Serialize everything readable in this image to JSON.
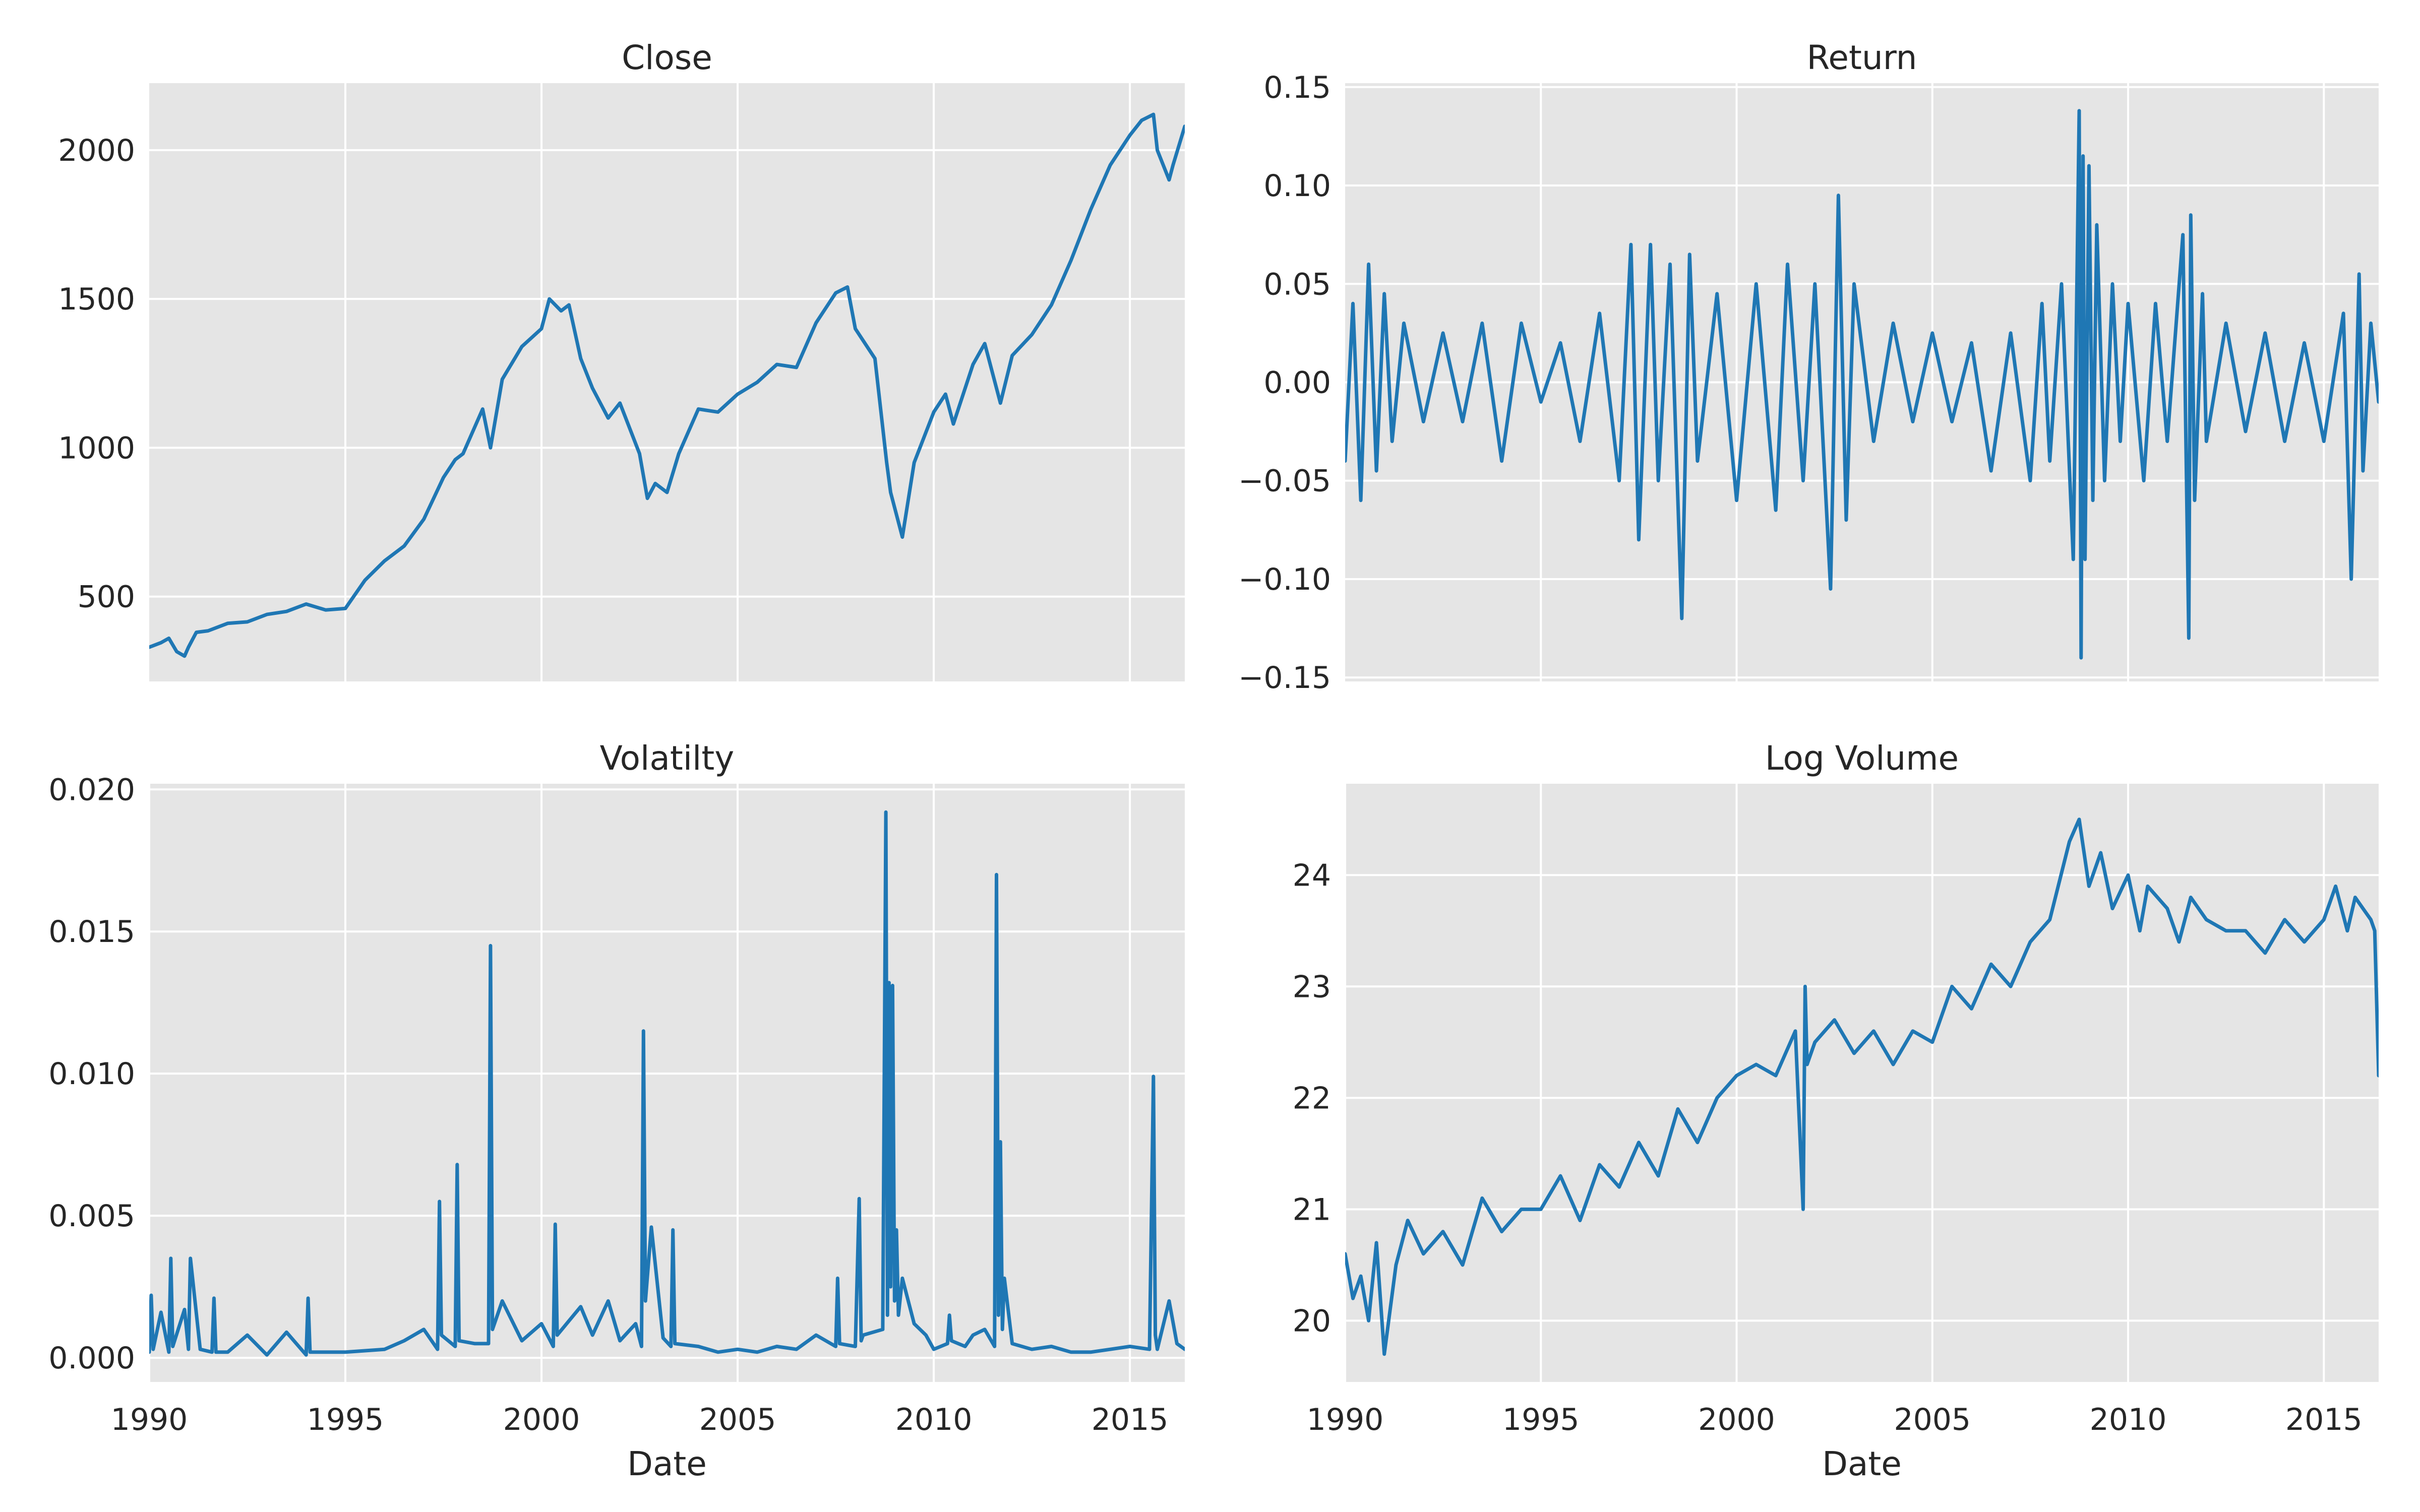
{
  "figure": {
    "line_color": "#1f77b4",
    "background_color": "#e5e5e5",
    "grid": true
  },
  "chart_data": [
    {
      "type": "line",
      "title": "Close",
      "xlabel": "",
      "ylabel": "",
      "xlim": [
        1990,
        2016.4
      ],
      "ylim": [
        215,
        2225
      ],
      "xticks": [
        1995,
        2000,
        2005,
        2010,
        2015
      ],
      "xtick_labels": [
        "",
        "",
        "",
        "",
        ""
      ],
      "yticks": [
        500,
        1000,
        1500,
        2000
      ],
      "ytick_labels": [
        "500",
        "1000",
        "1500",
        "2000"
      ],
      "series": [
        {
          "x": [
            1990.0,
            1990.3,
            1990.5,
            1990.7,
            1990.9,
            1991.0,
            1991.2,
            1991.5,
            1992.0,
            1992.5,
            1993.0,
            1993.5,
            1994.0,
            1994.5,
            1995.0,
            1995.5,
            1996.0,
            1996.5,
            1997.0,
            1997.5,
            1997.8,
            1998.0,
            1998.5,
            1998.7,
            1999.0,
            1999.5,
            2000.0,
            2000.2,
            2000.5,
            2000.7,
            2001.0,
            2001.3,
            2001.7,
            2002.0,
            2002.5,
            2002.7,
            2002.9,
            2003.2,
            2003.5,
            2004.0,
            2004.5,
            2005.0,
            2005.5,
            2006.0,
            2006.5,
            2007.0,
            2007.5,
            2007.8,
            2008.0,
            2008.5,
            2008.8,
            2008.9,
            2009.2,
            2009.5,
            2010.0,
            2010.3,
            2010.5,
            2011.0,
            2011.3,
            2011.7,
            2012.0,
            2012.5,
            2013.0,
            2013.5,
            2014.0,
            2014.5,
            2015.0,
            2015.3,
            2015.6,
            2015.7,
            2016.0,
            2016.1,
            2016.4
          ],
          "values": [
            330,
            345,
            360,
            315,
            300,
            330,
            380,
            385,
            410,
            415,
            440,
            450,
            475,
            455,
            460,
            555,
            620,
            670,
            760,
            900,
            960,
            980,
            1130,
            1000,
            1230,
            1340,
            1400,
            1500,
            1460,
            1480,
            1300,
            1200,
            1100,
            1150,
            980,
            830,
            880,
            850,
            980,
            1130,
            1120,
            1180,
            1220,
            1280,
            1270,
            1420,
            1520,
            1540,
            1400,
            1300,
            950,
            850,
            700,
            950,
            1120,
            1180,
            1080,
            1280,
            1350,
            1150,
            1310,
            1380,
            1480,
            1630,
            1800,
            1950,
            2050,
            2100,
            2120,
            2000,
            1900,
            1950,
            2080
          ]
        }
      ]
    },
    {
      "type": "line",
      "title": "Return",
      "xlabel": "",
      "ylabel": "",
      "xlim": [
        1990,
        2016.4
      ],
      "ylim": [
        -0.152,
        0.152
      ],
      "xticks": [
        1995,
        2000,
        2005,
        2010,
        2015
      ],
      "xtick_labels": [
        "",
        "",
        "",
        "",
        ""
      ],
      "yticks": [
        -0.15,
        -0.1,
        -0.05,
        0.0,
        0.05,
        0.1,
        0.15
      ],
      "ytick_labels": [
        "−0.15",
        "−0.10",
        "−0.05",
        "0.00",
        "0.05",
        "0.10",
        "0.15"
      ],
      "series": [
        {
          "x": [
            1990.0,
            1990.2,
            1990.4,
            1990.6,
            1990.8,
            1991.0,
            1991.2,
            1991.5,
            1992.0,
            1992.5,
            1993.0,
            1993.5,
            1994.0,
            1994.5,
            1995.0,
            1995.5,
            1996.0,
            1996.5,
            1997.0,
            1997.3,
            1997.5,
            1997.8,
            1998.0,
            1998.3,
            1998.6,
            1998.8,
            1999.0,
            1999.5,
            2000.0,
            2000.5,
            2001.0,
            2001.3,
            2001.7,
            2002.0,
            2002.4,
            2002.6,
            2002.8,
            2003.0,
            2003.5,
            2004.0,
            2004.5,
            2005.0,
            2005.5,
            2006.0,
            2006.5,
            2007.0,
            2007.5,
            2007.8,
            2008.0,
            2008.3,
            2008.6,
            2008.75,
            2008.8,
            2008.85,
            2008.9,
            2009.0,
            2009.1,
            2009.2,
            2009.4,
            2009.6,
            2009.8,
            2010.0,
            2010.4,
            2010.7,
            2011.0,
            2011.4,
            2011.55,
            2011.6,
            2011.7,
            2011.9,
            2012.0,
            2012.5,
            2013.0,
            2013.5,
            2014.0,
            2014.5,
            2015.0,
            2015.5,
            2015.7,
            2015.9,
            2016.0,
            2016.2,
            2016.4
          ],
          "values": [
            -0.04,
            0.04,
            -0.06,
            0.06,
            -0.045,
            0.045,
            -0.03,
            0.03,
            -0.02,
            0.025,
            -0.02,
            0.03,
            -0.04,
            0.03,
            -0.01,
            0.02,
            -0.03,
            0.035,
            -0.05,
            0.07,
            -0.08,
            0.07,
            -0.05,
            0.06,
            -0.12,
            0.065,
            -0.04,
            0.045,
            -0.06,
            0.05,
            -0.065,
            0.06,
            -0.05,
            0.05,
            -0.105,
            0.095,
            -0.07,
            0.05,
            -0.03,
            0.03,
            -0.02,
            0.025,
            -0.02,
            0.02,
            -0.045,
            0.025,
            -0.05,
            0.04,
            -0.04,
            0.05,
            -0.09,
            0.138,
            -0.14,
            0.115,
            -0.09,
            0.11,
            -0.06,
            0.08,
            -0.05,
            0.05,
            -0.03,
            0.04,
            -0.05,
            0.04,
            -0.03,
            0.075,
            -0.13,
            0.085,
            -0.06,
            0.045,
            -0.03,
            0.03,
            -0.025,
            0.025,
            -0.03,
            0.02,
            -0.03,
            0.035,
            -0.1,
            0.055,
            -0.045,
            0.03,
            -0.01
          ]
        }
      ]
    },
    {
      "type": "line",
      "title": "Volatilty",
      "xlabel": "Date",
      "ylabel": "",
      "xlim": [
        1990,
        2016.4
      ],
      "ylim": [
        -0.00085,
        0.0202
      ],
      "xticks": [
        1990,
        1995,
        2000,
        2005,
        2010,
        2015
      ],
      "xtick_labels": [
        "1990",
        "1995",
        "2000",
        "2005",
        "2010",
        "2015"
      ],
      "yticks": [
        0.0,
        0.005,
        0.01,
        0.015,
        0.02
      ],
      "ytick_labels": [
        "0.000",
        "0.005",
        "0.010",
        "0.015",
        "0.020"
      ],
      "series": [
        {
          "x": [
            1990.0,
            1990.05,
            1990.1,
            1990.3,
            1990.5,
            1990.55,
            1990.6,
            1990.9,
            1991.0,
            1991.05,
            1991.3,
            1991.6,
            1991.65,
            1991.7,
            1992.0,
            1992.5,
            1993.0,
            1993.5,
            1994.0,
            1994.05,
            1994.1,
            1995.0,
            1996.0,
            1996.5,
            1997.0,
            1997.35,
            1997.4,
            1997.45,
            1997.8,
            1997.85,
            1997.9,
            1998.3,
            1998.65,
            1998.7,
            1998.75,
            1999.0,
            1999.5,
            2000.0,
            2000.3,
            2000.35,
            2000.4,
            2001.0,
            2001.3,
            2001.7,
            2002.0,
            2002.4,
            2002.55,
            2002.6,
            2002.65,
            2002.8,
            2003.1,
            2003.3,
            2003.35,
            2003.4,
            2004.0,
            2004.5,
            2005.0,
            2005.5,
            2006.0,
            2006.5,
            2007.0,
            2007.5,
            2007.55,
            2007.6,
            2008.0,
            2008.1,
            2008.15,
            2008.2,
            2008.7,
            2008.78,
            2008.82,
            2008.86,
            2008.9,
            2008.95,
            2009.0,
            2009.05,
            2009.1,
            2009.2,
            2009.5,
            2009.8,
            2010.0,
            2010.35,
            2010.4,
            2010.45,
            2010.8,
            2011.0,
            2011.3,
            2011.55,
            2011.6,
            2011.65,
            2011.7,
            2011.75,
            2011.8,
            2012.0,
            2012.5,
            2013.0,
            2013.5,
            2014.0,
            2014.5,
            2015.0,
            2015.5,
            2015.6,
            2015.65,
            2015.7,
            2016.0,
            2016.2,
            2016.4
          ],
          "values": [
            0.0002,
            0.0022,
            0.0003,
            0.0016,
            0.0002,
            0.0035,
            0.0004,
            0.0017,
            0.0003,
            0.0035,
            0.0003,
            0.0002,
            0.0021,
            0.0002,
            0.0002,
            0.0008,
            0.0001,
            0.0009,
            0.0001,
            0.0021,
            0.0002,
            0.0002,
            0.0003,
            0.0006,
            0.001,
            0.0003,
            0.0055,
            0.0008,
            0.0004,
            0.0068,
            0.0006,
            0.0005,
            0.0005,
            0.0145,
            0.001,
            0.002,
            0.0006,
            0.0012,
            0.0004,
            0.0047,
            0.0008,
            0.0018,
            0.0008,
            0.002,
            0.0006,
            0.0012,
            0.0004,
            0.0115,
            0.002,
            0.0046,
            0.0007,
            0.0004,
            0.0045,
            0.0005,
            0.0004,
            0.0002,
            0.0003,
            0.0002,
            0.0004,
            0.0003,
            0.0008,
            0.0004,
            0.0028,
            0.0005,
            0.0004,
            0.0056,
            0.0006,
            0.0008,
            0.001,
            0.0192,
            0.0015,
            0.0132,
            0.0025,
            0.0131,
            0.002,
            0.0045,
            0.0015,
            0.0028,
            0.0012,
            0.0008,
            0.0003,
            0.0005,
            0.0015,
            0.0006,
            0.0004,
            0.0008,
            0.001,
            0.0004,
            0.017,
            0.0015,
            0.0076,
            0.001,
            0.0028,
            0.0005,
            0.0003,
            0.0004,
            0.0002,
            0.0002,
            0.0003,
            0.0004,
            0.0003,
            0.0099,
            0.0008,
            0.0003,
            0.002,
            0.0005,
            0.0003
          ]
        }
      ]
    },
    {
      "type": "line",
      "title": "Log Volume",
      "xlabel": "Date",
      "ylabel": "",
      "xlim": [
        1990,
        2016.4
      ],
      "ylim": [
        19.45,
        24.82
      ],
      "xticks": [
        1990,
        1995,
        2000,
        2005,
        2010,
        2015
      ],
      "xtick_labels": [
        "1990",
        "1995",
        "2000",
        "2005",
        "2010",
        "2015"
      ],
      "yticks": [
        20,
        21,
        22,
        23,
        24
      ],
      "ytick_labels": [
        "20",
        "21",
        "22",
        "23",
        "24"
      ],
      "series": [
        {
          "x": [
            1990.0,
            1990.2,
            1990.4,
            1990.6,
            1990.8,
            1991.0,
            1991.3,
            1991.6,
            1992.0,
            1992.5,
            1993.0,
            1993.5,
            1994.0,
            1994.5,
            1995.0,
            1995.5,
            1996.0,
            1996.5,
            1997.0,
            1997.5,
            1998.0,
            1998.5,
            1999.0,
            1999.5,
            2000.0,
            2000.5,
            2001.0,
            2001.5,
            2001.7,
            2001.75,
            2001.8,
            2002.0,
            2002.5,
            2003.0,
            2003.5,
            2004.0,
            2004.5,
            2005.0,
            2005.5,
            2006.0,
            2006.5,
            2007.0,
            2007.5,
            2008.0,
            2008.5,
            2008.75,
            2009.0,
            2009.3,
            2009.6,
            2010.0,
            2010.3,
            2010.5,
            2011.0,
            2011.3,
            2011.6,
            2012.0,
            2012.5,
            2013.0,
            2013.5,
            2014.0,
            2014.5,
            2015.0,
            2015.3,
            2015.6,
            2015.8,
            2016.0,
            2016.2,
            2016.3,
            2016.4
          ],
          "values": [
            20.6,
            20.2,
            20.4,
            20.0,
            20.7,
            19.7,
            20.5,
            20.9,
            20.6,
            20.8,
            20.5,
            21.1,
            20.8,
            21.0,
            21.0,
            21.3,
            20.9,
            21.4,
            21.2,
            21.6,
            21.3,
            21.9,
            21.6,
            22.0,
            22.2,
            22.3,
            22.2,
            22.6,
            21.0,
            23.0,
            22.3,
            22.5,
            22.7,
            22.4,
            22.6,
            22.3,
            22.6,
            22.5,
            23.0,
            22.8,
            23.2,
            23.0,
            23.4,
            23.6,
            24.3,
            24.5,
            23.9,
            24.2,
            23.7,
            24.0,
            23.5,
            23.9,
            23.7,
            23.4,
            23.8,
            23.6,
            23.5,
            23.5,
            23.3,
            23.6,
            23.4,
            23.6,
            23.9,
            23.5,
            23.8,
            23.7,
            23.6,
            23.5,
            22.2
          ]
        }
      ]
    }
  ]
}
